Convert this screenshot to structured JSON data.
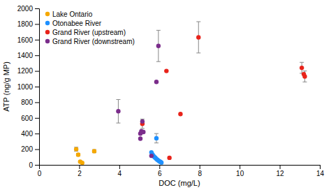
{
  "chart_data": {
    "type": "scatter",
    "xlabel": "DOC (mg/L)",
    "ylabel": "ATP (ng/g MP)",
    "xlim": [
      0,
      14
    ],
    "ylim": [
      0,
      2000
    ],
    "xticks": [
      0,
      2,
      4,
      6,
      8,
      10,
      12,
      14
    ],
    "yticks": [
      0,
      200,
      400,
      600,
      800,
      1000,
      1200,
      1400,
      1600,
      1800,
      2000
    ],
    "grid": false,
    "legend": "upper left",
    "series": [
      {
        "name": "Lake Ontario",
        "color": "#F5A800",
        "x": [
          1.85,
          1.95,
          2.05,
          2.15,
          2.75
        ],
        "values": [
          200,
          130,
          40,
          25,
          175
        ],
        "errors": [
          25,
          18,
          10,
          null,
          20
        ]
      },
      {
        "name": "Otonabee River",
        "color": "#1E90FF",
        "x": [
          5.6,
          5.65,
          5.7,
          5.75,
          5.8,
          5.85,
          5.9,
          5.95,
          6.0,
          6.05,
          6.1,
          5.85
        ],
        "values": [
          160,
          135,
          115,
          100,
          90,
          75,
          65,
          55,
          45,
          38,
          30,
          340
        ],
        "errors": [
          null,
          null,
          null,
          null,
          null,
          null,
          null,
          null,
          null,
          null,
          null,
          60
        ]
      },
      {
        "name": "Grand River (upstream)",
        "color": "#E8231A",
        "x": [
          5.15,
          6.35,
          6.5,
          7.05,
          7.95,
          13.1,
          13.2,
          13.25
        ],
        "values": [
          525,
          1200,
          90,
          650,
          1630,
          1240,
          1160,
          1130
        ],
        "errors": [
          60,
          null,
          null,
          null,
          200,
          70,
          null,
          70
        ]
      },
      {
        "name": "Grand River (downstream)",
        "color": "#7B2D8B",
        "x": [
          3.95,
          5.05,
          5.1,
          5.2,
          5.05,
          5.15,
          5.6,
          5.85,
          5.95
        ],
        "values": [
          685,
          400,
          430,
          420,
          335,
          555,
          115,
          1060,
          1520
        ],
        "errors": [
          150,
          null,
          null,
          null,
          null,
          null,
          null,
          null,
          200
        ]
      }
    ]
  }
}
